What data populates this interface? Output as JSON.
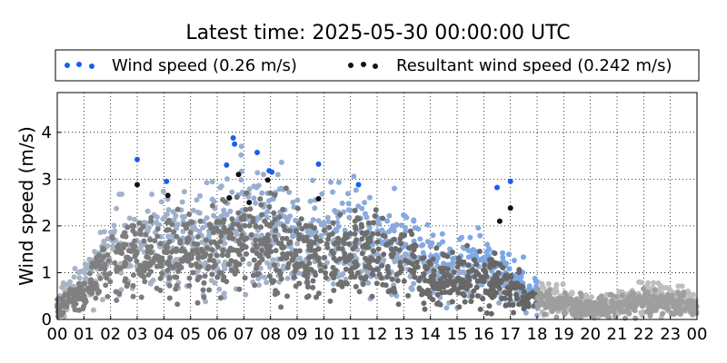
{
  "chart_data": {
    "type": "scatter",
    "title": "Latest time: 2025-05-30 00:00:00 UTC",
    "xlabel": "",
    "ylabel": "Wind speed (m/s)",
    "xlim": [
      0,
      24
    ],
    "ylim": [
      0,
      4.85
    ],
    "xticks": [
      "00",
      "01",
      "02",
      "03",
      "04",
      "05",
      "06",
      "07",
      "08",
      "09",
      "10",
      "11",
      "12",
      "13",
      "14",
      "15",
      "16",
      "17",
      "18",
      "19",
      "20",
      "21",
      "22",
      "23",
      "00"
    ],
    "yticks": [
      0,
      1,
      2,
      3,
      4
    ],
    "grid": true,
    "legend_position": "top",
    "legend": [
      {
        "label": "Wind speed (0.26 m/s)",
        "color": "#1a5ef0"
      },
      {
        "label": "Resultant wind speed (0.242 m/s)",
        "color": "#111111"
      }
    ],
    "series": [
      {
        "name": "Wind speed (0.26 m/s)",
        "color": "#1a5ef0",
        "fade_color": "#b8b8b8",
        "profile": {
          "hours": [
            0,
            1,
            2,
            3,
            4,
            5,
            6,
            7,
            8,
            9,
            10,
            11,
            12,
            13,
            14,
            15,
            16,
            17,
            18,
            19,
            20,
            21,
            22,
            23,
            24
          ],
          "typical": [
            0.35,
            0.7,
            1.55,
            1.6,
            1.55,
            1.6,
            1.75,
            1.95,
            1.95,
            1.7,
            1.75,
            1.7,
            1.55,
            1.5,
            1.15,
            1.1,
            1.1,
            0.85,
            0.55,
            0.4,
            0.3,
            0.35,
            0.5,
            0.45,
            0.3
          ]
        },
        "peaks": [
          {
            "x": 3.0,
            "y": 3.42
          },
          {
            "x": 4.1,
            "y": 2.95
          },
          {
            "x": 6.35,
            "y": 3.3
          },
          {
            "x": 6.6,
            "y": 3.88
          },
          {
            "x": 6.65,
            "y": 3.75
          },
          {
            "x": 7.5,
            "y": 3.57
          },
          {
            "x": 7.95,
            "y": 3.18
          },
          {
            "x": 8.05,
            "y": 3.15
          },
          {
            "x": 9.8,
            "y": 3.32
          },
          {
            "x": 11.3,
            "y": 2.88
          },
          {
            "x": 16.5,
            "y": 2.82
          },
          {
            "x": 17.0,
            "y": 2.95
          }
        ]
      },
      {
        "name": "Resultant wind speed (0.242 m/s)",
        "color": "#111111",
        "fade_color": "#999999",
        "profile": {
          "hours": [
            0,
            1,
            2,
            3,
            4,
            5,
            6,
            7,
            8,
            9,
            10,
            11,
            12,
            13,
            14,
            15,
            16,
            17,
            18,
            19,
            20,
            21,
            22,
            23,
            24
          ],
          "typical": [
            0.3,
            0.55,
            1.25,
            1.3,
            1.3,
            1.35,
            1.5,
            1.65,
            1.65,
            1.4,
            1.45,
            1.4,
            1.25,
            1.2,
            0.9,
            0.85,
            0.85,
            0.6,
            0.4,
            0.3,
            0.25,
            0.28,
            0.4,
            0.35,
            0.25
          ]
        },
        "peaks": [
          {
            "x": 3.0,
            "y": 2.88
          },
          {
            "x": 4.15,
            "y": 2.65
          },
          {
            "x": 6.45,
            "y": 2.6
          },
          {
            "x": 6.8,
            "y": 3.1
          },
          {
            "x": 7.2,
            "y": 2.5
          },
          {
            "x": 7.9,
            "y": 2.98
          },
          {
            "x": 9.8,
            "y": 2.58
          },
          {
            "x": 16.6,
            "y": 2.1
          },
          {
            "x": 17.0,
            "y": 2.38
          }
        ]
      }
    ]
  }
}
